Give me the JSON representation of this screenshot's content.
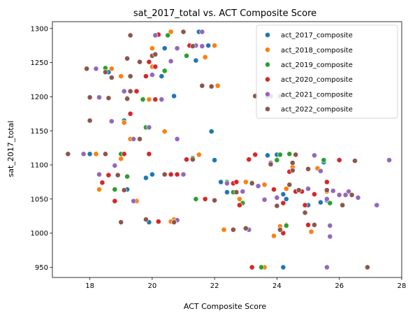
{
  "chart_data": {
    "type": "scatter",
    "title": "sat_2017_total vs. ACT Composite Score",
    "xlabel": "ACT Composite Score",
    "ylabel": "sat_2017_total",
    "xlim": [
      16.8,
      28.0
    ],
    "ylim": [
      935,
      1310
    ],
    "x_ticks": [
      "18",
      "20",
      "22",
      "24",
      "26",
      "28"
    ],
    "y_ticks": [
      "950",
      "1000",
      "1050",
      "1100",
      "1150",
      "1200",
      "1250",
      "1300"
    ],
    "legend": "top-right",
    "grid": false,
    "series": [
      {
        "name": "act_2017_composite",
        "color": "#1f77b4",
        "points": [
          [
            21.5,
            1295
          ],
          [
            20.4,
            1271
          ],
          [
            21.8,
            1275
          ],
          [
            21.4,
            1253
          ],
          [
            20.3,
            1230
          ],
          [
            19.2,
            1198
          ],
          [
            20.7,
            1201
          ],
          [
            18.6,
            1236
          ],
          [
            21.9,
            1149
          ],
          [
            19.4,
            1138
          ],
          [
            20.0,
            1086
          ],
          [
            19.8,
            1081
          ],
          [
            19.5,
            1047
          ],
          [
            19.9,
            1016
          ],
          [
            22.2,
            1075
          ],
          [
            22.0,
            1107
          ],
          [
            23.7,
            1114
          ],
          [
            24.2,
            1057
          ],
          [
            24.3,
            1050
          ],
          [
            25.4,
            1045
          ],
          [
            25.0,
            1041
          ],
          [
            25.5,
            1104
          ],
          [
            24.2,
            950
          ],
          [
            25.6,
            1048
          ],
          [
            18.0,
            1116
          ],
          [
            19.2,
            1064
          ],
          [
            19.1,
            1165
          ],
          [
            24.0,
            1115
          ],
          [
            22.4,
            1060
          ]
        ]
      },
      {
        "name": "act_2018_composite",
        "color": "#ff7f0e",
        "points": [
          [
            20.6,
            1295
          ],
          [
            20.0,
            1271
          ],
          [
            21.7,
            1258
          ],
          [
            22.0,
            1275
          ],
          [
            20.0,
            1244
          ],
          [
            18.7,
            1241
          ],
          [
            20.4,
            1237
          ],
          [
            19.0,
            1230
          ],
          [
            19.9,
            1196
          ],
          [
            19.1,
            1162
          ],
          [
            20.4,
            1149
          ],
          [
            19.3,
            1138
          ],
          [
            22.1,
            1216
          ],
          [
            23.8,
            1201
          ],
          [
            18.2,
            1116
          ],
          [
            18.6,
            1085
          ],
          [
            19.5,
            1047
          ],
          [
            20.7,
            1020
          ],
          [
            20.6,
            1017
          ],
          [
            22.3,
            1005
          ],
          [
            23.6,
            1071
          ],
          [
            23.9,
            996
          ],
          [
            24.1,
            1010
          ],
          [
            25.1,
            1002
          ],
          [
            25.3,
            1095
          ],
          [
            25.6,
            1061
          ],
          [
            24.5,
            1097
          ],
          [
            24.3,
            1065
          ],
          [
            23.0,
            1075
          ],
          [
            21.4,
            1050
          ],
          [
            21.5,
            1115
          ],
          [
            19.0,
            1109
          ],
          [
            18.3,
            1064
          ],
          [
            20.4,
            1086
          ],
          [
            22.6,
            1060
          ],
          [
            22.8,
            1050
          ],
          [
            23.6,
            950
          ],
          [
            24.3,
            1012
          ]
        ]
      },
      {
        "name": "act_2019_composite",
        "color": "#2ca02c",
        "points": [
          [
            20.5,
            1290
          ],
          [
            21.1,
            1260
          ],
          [
            20.4,
            1238
          ],
          [
            18.5,
            1242
          ],
          [
            19.3,
            1208
          ],
          [
            19.7,
            1196
          ],
          [
            19.8,
            1155
          ],
          [
            19.0,
            1116
          ],
          [
            21.4,
            1050
          ],
          [
            22.4,
            1075
          ],
          [
            22.6,
            1060
          ],
          [
            23.5,
            950
          ],
          [
            24.1,
            1005
          ],
          [
            24.3,
            1011
          ],
          [
            24.4,
            1116
          ],
          [
            24.0,
            1107
          ],
          [
            25.5,
            1107
          ],
          [
            25.7,
            1044
          ],
          [
            23.2,
            1074
          ],
          [
            22.9,
            1044
          ],
          [
            18.8,
            1064
          ],
          [
            19.2,
            1083
          ],
          [
            20.4,
            1086
          ],
          [
            21.3,
            1110
          ],
          [
            24.1,
            1115
          ]
        ]
      },
      {
        "name": "act_2020_composite",
        "color": "#d62728",
        "points": [
          [
            20.2,
            1291
          ],
          [
            21.2,
            1275
          ],
          [
            19.9,
            1251
          ],
          [
            20.1,
            1244
          ],
          [
            19.8,
            1230
          ],
          [
            18.6,
            1085
          ],
          [
            19.1,
            1116
          ],
          [
            20.1,
            1196
          ],
          [
            19.9,
            1116
          ],
          [
            21.1,
            1108
          ],
          [
            20.2,
            1017
          ],
          [
            20.6,
            1086
          ],
          [
            20.8,
            1086
          ],
          [
            21.6,
            1216
          ],
          [
            21.7,
            1050
          ],
          [
            22.6,
            1073
          ],
          [
            23.1,
            1108
          ],
          [
            23.2,
            950
          ],
          [
            23.3,
            1115
          ],
          [
            24.2,
            1000
          ],
          [
            24.2,
            1044
          ],
          [
            24.9,
            1041
          ],
          [
            25.0,
            1012
          ],
          [
            25.6,
            1075
          ],
          [
            26.0,
            1107
          ],
          [
            24.4,
            1090
          ],
          [
            23.9,
            1064
          ],
          [
            18.8,
            1047
          ],
          [
            19.3,
            1175
          ],
          [
            19.5,
            1208
          ],
          [
            22.8,
            1041
          ],
          [
            22.7,
            1075
          ],
          [
            25.2,
            1057
          ],
          [
            24.8,
            1061
          ],
          [
            18.4,
            1074
          ],
          [
            24.6,
            1061
          ]
        ]
      },
      {
        "name": "act_2021_composite",
        "color": "#9467bd",
        "points": [
          [
            20.1,
            1290
          ],
          [
            21.6,
            1295
          ],
          [
            20.8,
            1271
          ],
          [
            21.4,
            1275
          ],
          [
            20.6,
            1252
          ],
          [
            20.0,
            1232
          ],
          [
            18.2,
            1241
          ],
          [
            18.3,
            1199
          ],
          [
            19.1,
            1208
          ],
          [
            19.9,
            1155
          ],
          [
            20.3,
            1196
          ],
          [
            18.7,
            1164
          ],
          [
            19.4,
            1138
          ],
          [
            17.8,
            1116
          ],
          [
            18.3,
            1086
          ],
          [
            20.8,
            1138
          ],
          [
            22.4,
            1073
          ],
          [
            23.4,
            1069
          ],
          [
            22.9,
            1061
          ],
          [
            23.1,
            1005
          ],
          [
            23.7,
            1200
          ],
          [
            24.1,
            1201
          ],
          [
            23.8,
            1103
          ],
          [
            24.0,
            1052
          ],
          [
            25.2,
            1114
          ],
          [
            25.0,
            1065
          ],
          [
            25.4,
            1091
          ],
          [
            25.7,
            1011
          ],
          [
            25.8,
            1062
          ],
          [
            26.0,
            1056
          ],
          [
            26.3,
            1061
          ],
          [
            26.6,
            1052
          ],
          [
            27.2,
            1041
          ],
          [
            27.6,
            1107
          ],
          [
            25.6,
            950
          ],
          [
            25.7,
            995
          ],
          [
            20.8,
            1019
          ],
          [
            21.0,
            1086
          ],
          [
            19.4,
            1047
          ],
          [
            18.8,
            1099
          ],
          [
            21.6,
            1274
          ],
          [
            23.8,
            1201
          ],
          [
            23.6,
            1049
          ],
          [
            25.6,
            1050
          ],
          [
            26.2,
            1056
          ]
        ]
      },
      {
        "name": "act_2022_composite",
        "color": "#8c564b",
        "points": [
          [
            19.3,
            1290
          ],
          [
            21.0,
            1295
          ],
          [
            19.6,
            1251
          ],
          [
            20.0,
            1260
          ],
          [
            19.2,
            1256
          ],
          [
            17.9,
            1241
          ],
          [
            18.5,
            1236
          ],
          [
            18.7,
            1228
          ],
          [
            19.3,
            1230
          ],
          [
            18.0,
            1199
          ],
          [
            18.6,
            1198
          ],
          [
            19.2,
            1197
          ],
          [
            19.3,
            1208
          ],
          [
            19.6,
            1138
          ],
          [
            18.0,
            1165
          ],
          [
            17.3,
            1116
          ],
          [
            18.5,
            1116
          ],
          [
            19.1,
            1063
          ],
          [
            19.0,
            1016
          ],
          [
            18.9,
            1085
          ],
          [
            20.7,
            1016
          ],
          [
            20.4,
            1086
          ],
          [
            21.6,
            1216
          ],
          [
            23.3,
            1201
          ],
          [
            22.7,
            1060
          ],
          [
            22.6,
            1005
          ],
          [
            23.0,
            1007
          ],
          [
            23.2,
            1073
          ],
          [
            23.8,
            1101
          ],
          [
            24.6,
            1115
          ],
          [
            24.5,
            1103
          ],
          [
            24.5,
            1092
          ],
          [
            24.7,
            1063
          ],
          [
            24.9,
            1030
          ],
          [
            25.2,
            1012
          ],
          [
            25.6,
            1063
          ],
          [
            26.1,
            1041
          ],
          [
            26.4,
            1056
          ],
          [
            26.5,
            1106
          ],
          [
            26.9,
            950
          ],
          [
            24.0,
            1040
          ],
          [
            19.8,
            1020
          ],
          [
            21.3,
            1274
          ],
          [
            21.9,
            1215
          ],
          [
            20.1,
            1262
          ],
          [
            22.0,
            1048
          ],
          [
            24.1,
            1005
          ],
          [
            25.0,
            1094
          ],
          [
            24.4,
            1071
          ],
          [
            21.3,
            1108
          ]
        ]
      }
    ]
  }
}
